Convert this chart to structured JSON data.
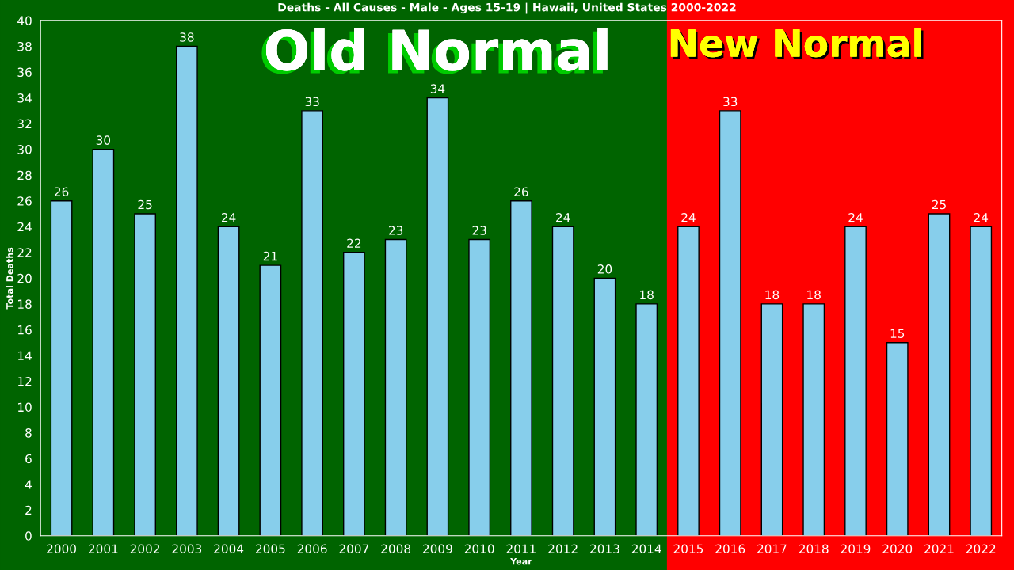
{
  "chart_data": {
    "type": "bar",
    "title": "Deaths - All Causes - Male - Ages 15-19 | Hawaii, United States 2000-2022",
    "xlabel": "Year",
    "ylabel": "Total Deaths",
    "categories": [
      "2000",
      "2001",
      "2002",
      "2003",
      "2004",
      "2005",
      "2006",
      "2007",
      "2008",
      "2009",
      "2010",
      "2011",
      "2012",
      "2013",
      "2014",
      "2015",
      "2016",
      "2017",
      "2018",
      "2019",
      "2020",
      "2021",
      "2022"
    ],
    "values": [
      26,
      30,
      25,
      38,
      24,
      21,
      33,
      22,
      23,
      34,
      23,
      26,
      24,
      20,
      18,
      24,
      33,
      18,
      18,
      24,
      15,
      25,
      24
    ],
    "color": "#87ceeb",
    "ylim": [
      0,
      40
    ],
    "yticks": [
      0,
      2,
      4,
      6,
      8,
      10,
      12,
      14,
      16,
      18,
      20,
      22,
      24,
      26,
      28,
      30,
      32,
      34,
      36,
      38,
      40
    ],
    "data_labels": true,
    "grid": false,
    "legend": false,
    "bands": [
      {
        "axis": "x",
        "from": "2000",
        "to": "2014",
        "label": "Old Normal",
        "color": "#006400"
      },
      {
        "axis": "x",
        "from": "2015",
        "to": "2022",
        "label": "New Normal",
        "color": "#ff0000"
      }
    ]
  }
}
